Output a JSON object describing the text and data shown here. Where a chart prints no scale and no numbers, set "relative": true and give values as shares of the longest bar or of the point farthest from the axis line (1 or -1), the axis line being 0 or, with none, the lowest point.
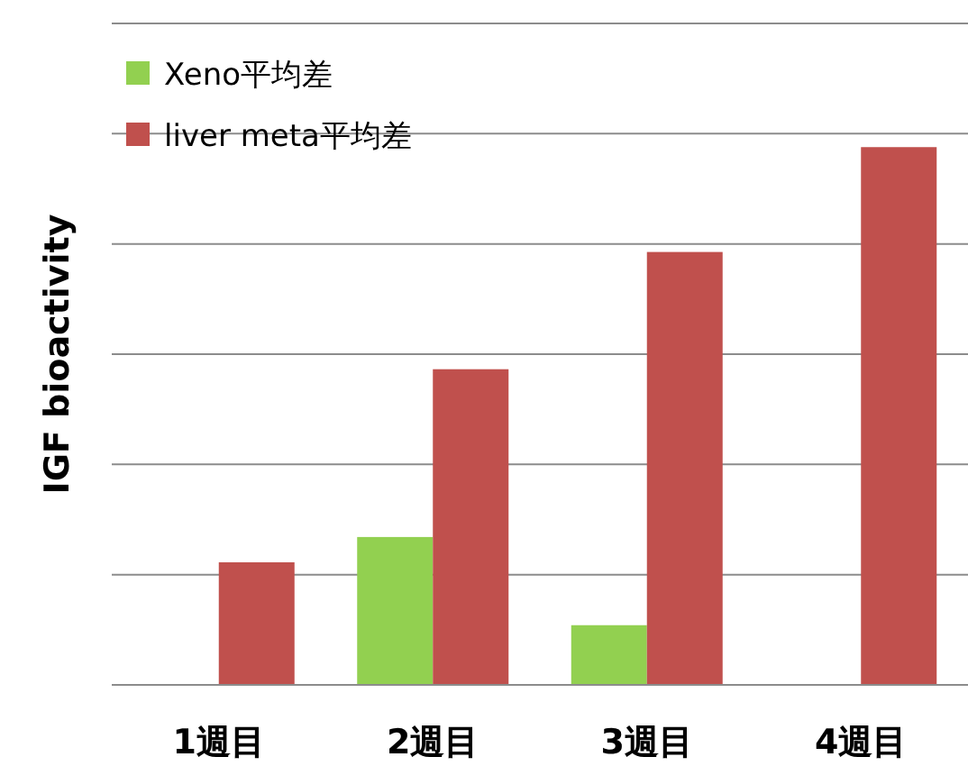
{
  "chart_data": {
    "type": "bar",
    "relative": true,
    "ylabel": "IGF bioactivity",
    "categories": [
      "1週目",
      "2週目",
      "3週目",
      "4週目"
    ],
    "series": [
      {
        "name": "Xeno平均差",
        "color": "#92d050",
        "values": [
          null,
          0.275,
          0.111,
          null
        ]
      },
      {
        "name": "liver meta平均差",
        "color": "#c0504d",
        "values": [
          0.228,
          0.587,
          0.805,
          1
        ]
      }
    ],
    "grid": "y",
    "legend": "top left"
  }
}
